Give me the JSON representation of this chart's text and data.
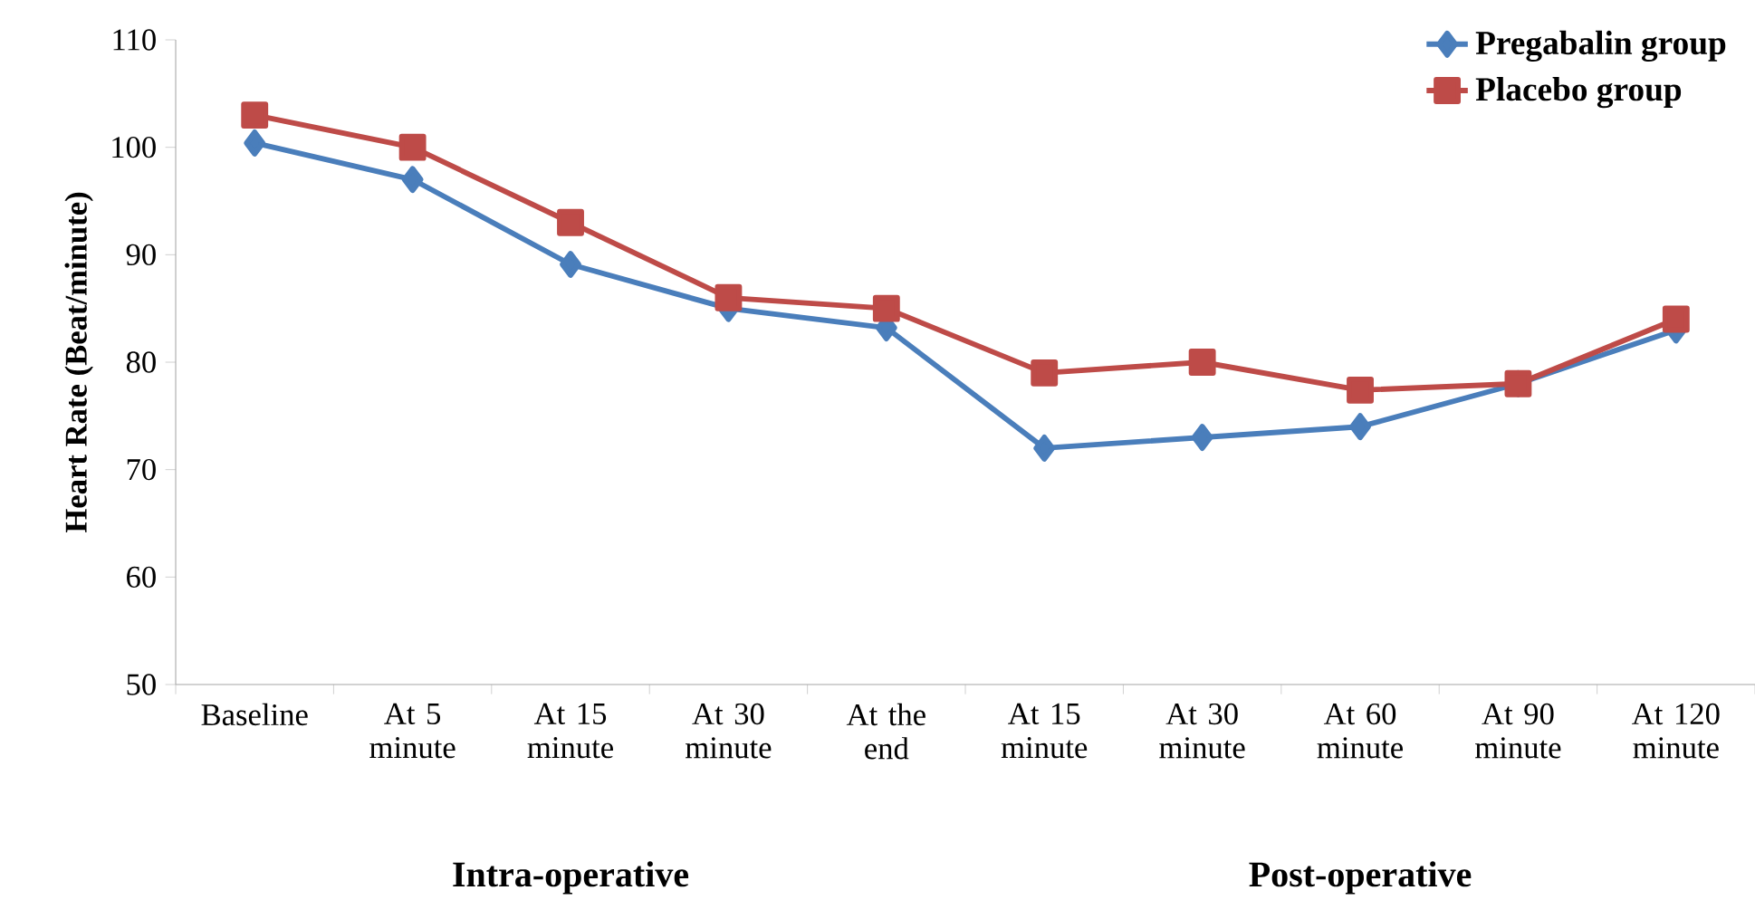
{
  "chart_data": {
    "type": "line",
    "ylabel": "Heart Rate (Beat/minute)",
    "categories": [
      "Baseline",
      "At 5 minute",
      "At 15 minute",
      "At 30 minute",
      "At the end",
      "At 15 minute",
      "At 30 minute",
      "At 60 minute",
      "At 90 minute",
      "At 120 minute"
    ],
    "series": [
      {
        "name": "Pregabalin group",
        "color": "#4a7ebb",
        "marker": "diamond",
        "values": [
          100.4,
          97,
          89.1,
          85,
          83.2,
          72,
          73,
          74,
          78,
          83
        ]
      },
      {
        "name": "Placebo group",
        "color": "#be4b48",
        "marker": "square",
        "values": [
          103,
          100,
          93,
          86,
          85,
          79,
          80,
          77.4,
          78,
          84
        ]
      }
    ],
    "ylim": [
      50,
      110
    ],
    "yticks": [
      50,
      60,
      70,
      80,
      90,
      100,
      110
    ],
    "legend": "top right",
    "grid": false,
    "line_style": "solid",
    "annotations": [
      "Intra-operative",
      "Post-operative"
    ]
  }
}
